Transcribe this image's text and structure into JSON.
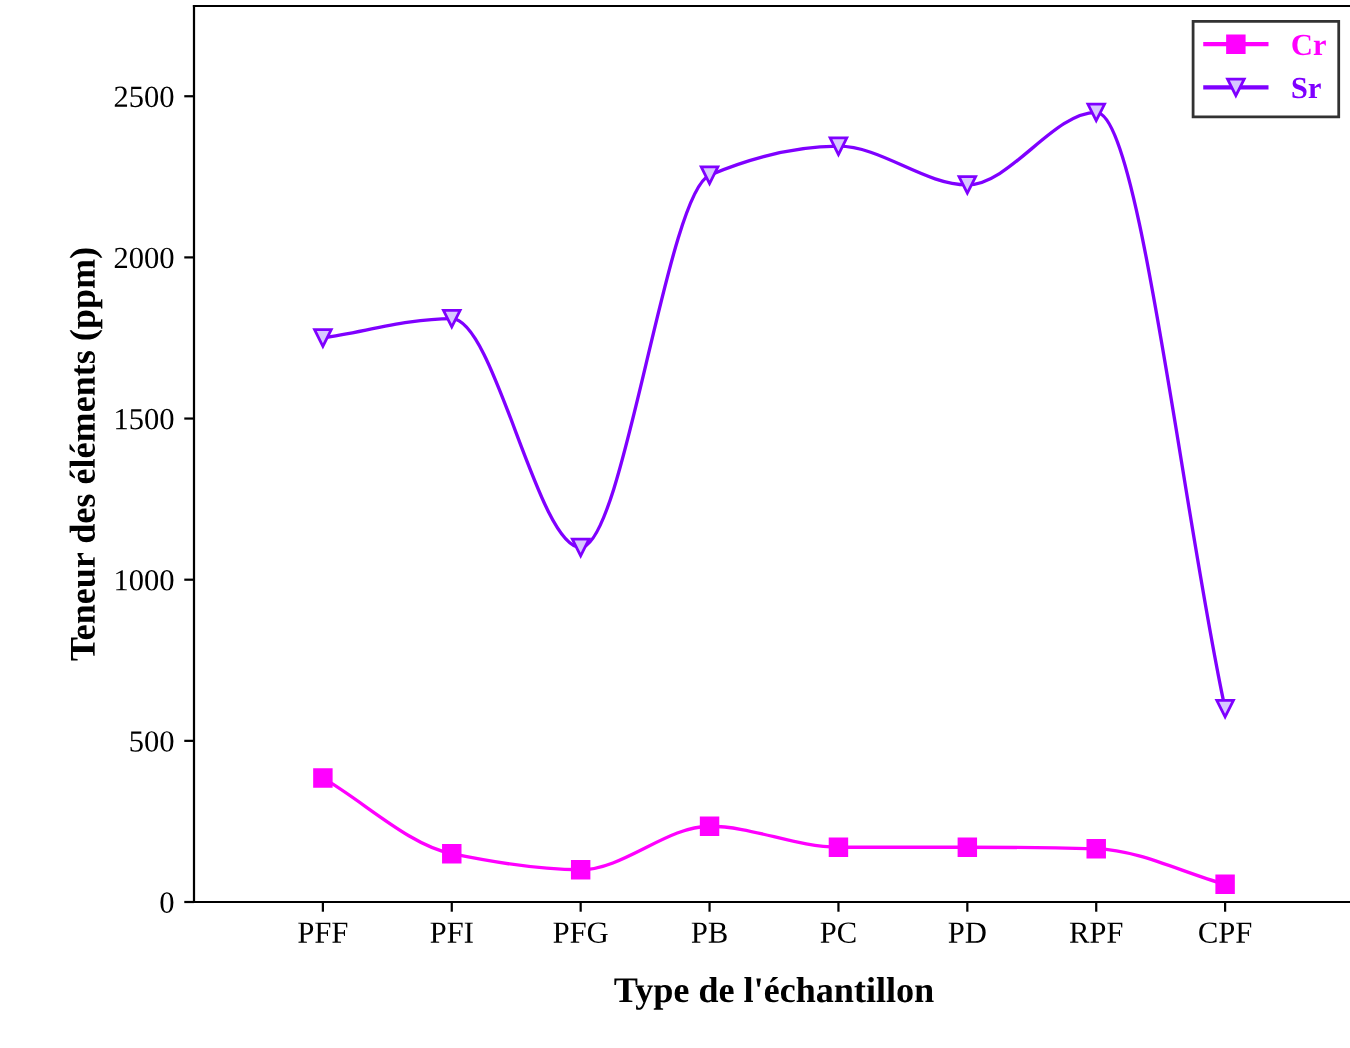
{
  "chart_data": {
    "type": "line",
    "xlabel": "Type de l'échantillon",
    "ylabel": "Teneur des éléments (ppm)",
    "categories": [
      "PFF",
      "PFI",
      "PFG",
      "PB",
      "PC",
      "PD",
      "RPF",
      "CPF"
    ],
    "series": [
      {
        "name": "Cr",
        "color": "#ff00ff",
        "marker": "square",
        "values": [
          385,
          150,
          100,
          235,
          170,
          170,
          165,
          55
        ]
      },
      {
        "name": "Sr",
        "color": "#7f00ff",
        "marker": "triangle",
        "values": [
          1750,
          1810,
          1100,
          2255,
          2345,
          2225,
          2450,
          600
        ]
      }
    ],
    "ylim": [
      0,
      2780
    ],
    "yticks": [
      0,
      500,
      1000,
      1500,
      2000,
      2500
    ],
    "grid": false,
    "legend": "top right",
    "line_style": "solid"
  }
}
